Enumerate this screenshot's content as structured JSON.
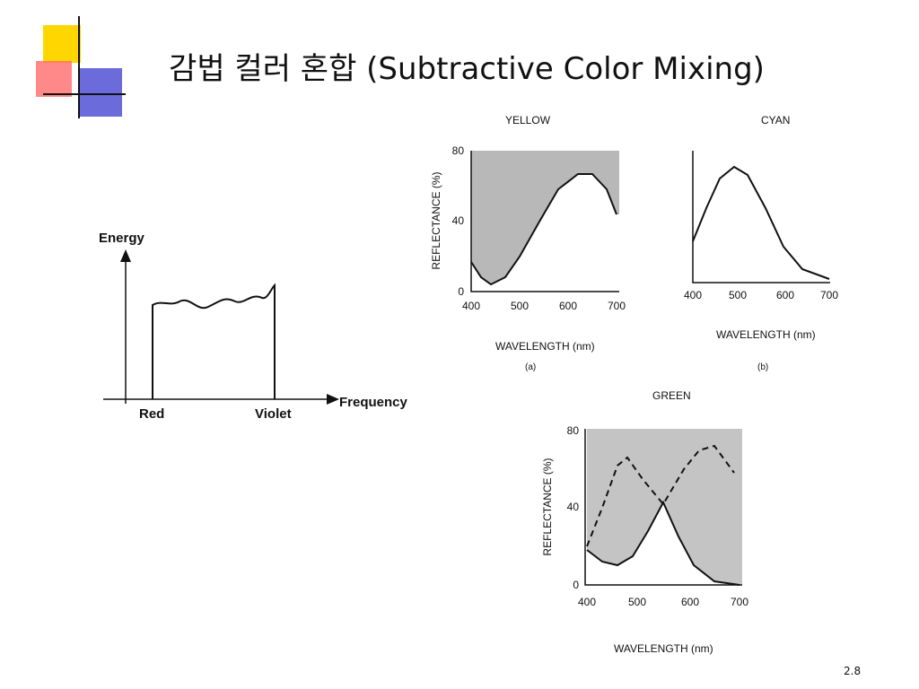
{
  "title": "감법 컬러 혼합 (Subtractive Color Mixing)",
  "slide_number": "2.8",
  "energy_diagram": {
    "y_label": "Energy",
    "x_label": "Frequency",
    "start_label": "Red",
    "end_label": "Violet"
  },
  "yellow_plot": {
    "title": "YELLOW",
    "y_label": "REFLECTANCE (%)",
    "yticks": [
      0,
      40,
      80
    ],
    "xticks": [
      400,
      500,
      600,
      700
    ],
    "x_label": "WAVELENGTH (nm)",
    "caption": "(a)"
  },
  "cyan_plot": {
    "title": "CYAN",
    "xticks": [
      400,
      500,
      600,
      700
    ],
    "x_label": "WAVELENGTH (nm)",
    "caption": "(b)"
  },
  "green_plot": {
    "title": "GREEN",
    "y_label": "REFLECTANCE (%)",
    "yticks": [
      0,
      40,
      80
    ],
    "xticks": [
      400,
      500,
      600,
      700
    ],
    "x_label": "WAVELENGTH (nm)"
  }
}
